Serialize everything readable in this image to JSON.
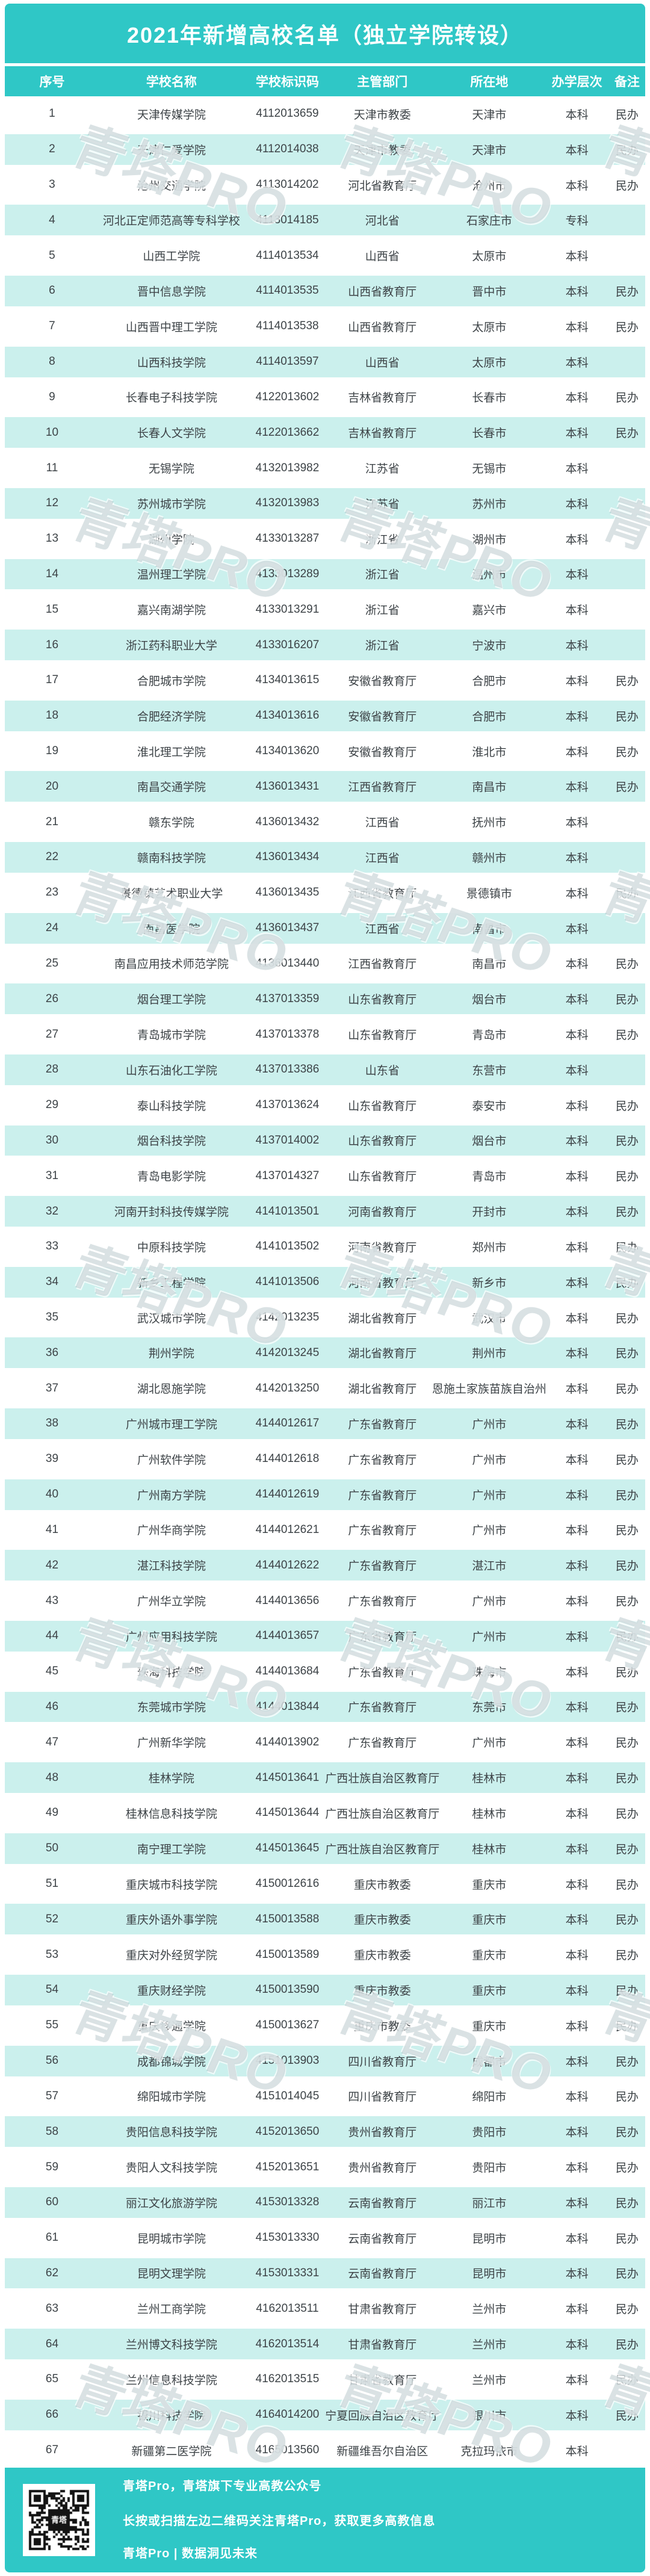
{
  "chart_data": {
    "type": "table",
    "title": "2021年新增高校名单（独立学院转设）",
    "columns": [
      "序号",
      "学校名称",
      "学校标识码",
      "主管部门",
      "所在地",
      "办学层次",
      "备注"
    ],
    "rows": [
      [
        "1",
        "天津传媒学院",
        "4112013659",
        "天津市教委",
        "天津市",
        "本科",
        "民办"
      ],
      [
        "2",
        "天津仁爱学院",
        "4112014038",
        "天津市教委",
        "天津市",
        "本科",
        "民办"
      ],
      [
        "3",
        "沧州交通学院",
        "4113014202",
        "河北省教育厅",
        "沧州市",
        "本科",
        "民办"
      ],
      [
        "4",
        "河北正定师范高等专科学校",
        "4113014185",
        "河北省",
        "石家庄市",
        "专科",
        ""
      ],
      [
        "5",
        "山西工学院",
        "4114013534",
        "山西省",
        "太原市",
        "本科",
        ""
      ],
      [
        "6",
        "晋中信息学院",
        "4114013535",
        "山西省教育厅",
        "晋中市",
        "本科",
        "民办"
      ],
      [
        "7",
        "山西晋中理工学院",
        "4114013538",
        "山西省教育厅",
        "太原市",
        "本科",
        "民办"
      ],
      [
        "8",
        "山西科技学院",
        "4114013597",
        "山西省",
        "太原市",
        "本科",
        ""
      ],
      [
        "9",
        "长春电子科技学院",
        "4122013602",
        "吉林省教育厅",
        "长春市",
        "本科",
        "民办"
      ],
      [
        "10",
        "长春人文学院",
        "4122013662",
        "吉林省教育厅",
        "长春市",
        "本科",
        "民办"
      ],
      [
        "11",
        "无锡学院",
        "4132013982",
        "江苏省",
        "无锡市",
        "本科",
        ""
      ],
      [
        "12",
        "苏州城市学院",
        "4132013983",
        "江苏省",
        "苏州市",
        "本科",
        ""
      ],
      [
        "13",
        "湖州学院",
        "4133013287",
        "浙江省",
        "湖州市",
        "本科",
        ""
      ],
      [
        "14",
        "温州理工学院",
        "4133013289",
        "浙江省",
        "温州市",
        "本科",
        ""
      ],
      [
        "15",
        "嘉兴南湖学院",
        "4133013291",
        "浙江省",
        "嘉兴市",
        "本科",
        ""
      ],
      [
        "16",
        "浙江药科职业大学",
        "4133016207",
        "浙江省",
        "宁波市",
        "本科",
        ""
      ],
      [
        "17",
        "合肥城市学院",
        "4134013615",
        "安徽省教育厅",
        "合肥市",
        "本科",
        "民办"
      ],
      [
        "18",
        "合肥经济学院",
        "4134013616",
        "安徽省教育厅",
        "合肥市",
        "本科",
        "民办"
      ],
      [
        "19",
        "淮北理工学院",
        "4134013620",
        "安徽省教育厅",
        "淮北市",
        "本科",
        "民办"
      ],
      [
        "20",
        "南昌交通学院",
        "4136013431",
        "江西省教育厅",
        "南昌市",
        "本科",
        "民办"
      ],
      [
        "21",
        "赣东学院",
        "4136013432",
        "江西省",
        "抚州市",
        "本科",
        ""
      ],
      [
        "22",
        "赣南科技学院",
        "4136013434",
        "江西省",
        "赣州市",
        "本科",
        ""
      ],
      [
        "23",
        "景德镇艺术职业大学",
        "4136013435",
        "江西省教育厅",
        "景德镇市",
        "本科",
        "民办"
      ],
      [
        "24",
        "南昌医学院",
        "4136013437",
        "江西省",
        "南昌市",
        "本科",
        ""
      ],
      [
        "25",
        "南昌应用技术师范学院",
        "4136013440",
        "江西省教育厅",
        "南昌市",
        "本科",
        "民办"
      ],
      [
        "26",
        "烟台理工学院",
        "4137013359",
        "山东省教育厅",
        "烟台市",
        "本科",
        "民办"
      ],
      [
        "27",
        "青岛城市学院",
        "4137013378",
        "山东省教育厅",
        "青岛市",
        "本科",
        "民办"
      ],
      [
        "28",
        "山东石油化工学院",
        "4137013386",
        "山东省",
        "东营市",
        "本科",
        ""
      ],
      [
        "29",
        "泰山科技学院",
        "4137013624",
        "山东省教育厅",
        "泰安市",
        "本科",
        "民办"
      ],
      [
        "30",
        "烟台科技学院",
        "4137014002",
        "山东省教育厅",
        "烟台市",
        "本科",
        "民办"
      ],
      [
        "31",
        "青岛电影学院",
        "4137014327",
        "山东省教育厅",
        "青岛市",
        "本科",
        "民办"
      ],
      [
        "32",
        "河南开封科技传媒学院",
        "4141013501",
        "河南省教育厅",
        "开封市",
        "本科",
        "民办"
      ],
      [
        "33",
        "中原科技学院",
        "4141013502",
        "河南省教育厅",
        "郑州市",
        "本科",
        "民办"
      ],
      [
        "34",
        "新乡工程学院",
        "4141013506",
        "河南省教育厅",
        "新乡市",
        "本科",
        "民办"
      ],
      [
        "35",
        "武汉城市学院",
        "4142013235",
        "湖北省教育厅",
        "武汉市",
        "本科",
        "民办"
      ],
      [
        "36",
        "荆州学院",
        "4142013245",
        "湖北省教育厅",
        "荆州市",
        "本科",
        "民办"
      ],
      [
        "37",
        "湖北恩施学院",
        "4142013250",
        "湖北省教育厅",
        "恩施土家族苗族自治州",
        "本科",
        "民办"
      ],
      [
        "38",
        "广州城市理工学院",
        "4144012617",
        "广东省教育厅",
        "广州市",
        "本科",
        "民办"
      ],
      [
        "39",
        "广州软件学院",
        "4144012618",
        "广东省教育厅",
        "广州市",
        "本科",
        "民办"
      ],
      [
        "40",
        "广州南方学院",
        "4144012619",
        "广东省教育厅",
        "广州市",
        "本科",
        "民办"
      ],
      [
        "41",
        "广州华商学院",
        "4144012621",
        "广东省教育厅",
        "广州市",
        "本科",
        "民办"
      ],
      [
        "42",
        "湛江科技学院",
        "4144012622",
        "广东省教育厅",
        "湛江市",
        "本科",
        "民办"
      ],
      [
        "43",
        "广州华立学院",
        "4144013656",
        "广东省教育厅",
        "广州市",
        "本科",
        "民办"
      ],
      [
        "44",
        "广州应用科技学院",
        "4144013657",
        "广东省教育厅",
        "广州市",
        "本科",
        "民办"
      ],
      [
        "45",
        "珠海科技学院",
        "4144013684",
        "广东省教育厅",
        "珠海市",
        "本科",
        "民办"
      ],
      [
        "46",
        "东莞城市学院",
        "4144013844",
        "广东省教育厅",
        "东莞市",
        "本科",
        "民办"
      ],
      [
        "47",
        "广州新华学院",
        "4144013902",
        "广东省教育厅",
        "广州市",
        "本科",
        "民办"
      ],
      [
        "48",
        "桂林学院",
        "4145013641",
        "广西壮族自治区教育厅",
        "桂林市",
        "本科",
        "民办"
      ],
      [
        "49",
        "桂林信息科技学院",
        "4145013644",
        "广西壮族自治区教育厅",
        "桂林市",
        "本科",
        "民办"
      ],
      [
        "50",
        "南宁理工学院",
        "4145013645",
        "广西壮族自治区教育厅",
        "桂林市",
        "本科",
        "民办"
      ],
      [
        "51",
        "重庆城市科技学院",
        "4150012616",
        "重庆市教委",
        "重庆市",
        "本科",
        "民办"
      ],
      [
        "52",
        "重庆外语外事学院",
        "4150013588",
        "重庆市教委",
        "重庆市",
        "本科",
        "民办"
      ],
      [
        "53",
        "重庆对外经贸学院",
        "4150013589",
        "重庆市教委",
        "重庆市",
        "本科",
        "民办"
      ],
      [
        "54",
        "重庆财经学院",
        "4150013590",
        "重庆市教委",
        "重庆市",
        "本科",
        "民办"
      ],
      [
        "55",
        "重庆移通学院",
        "4150013627",
        "重庆市教委",
        "重庆市",
        "本科",
        "民办"
      ],
      [
        "56",
        "成都锦城学院",
        "4151013903",
        "四川省教育厅",
        "成都市",
        "本科",
        "民办"
      ],
      [
        "57",
        "绵阳城市学院",
        "4151014045",
        "四川省教育厅",
        "绵阳市",
        "本科",
        "民办"
      ],
      [
        "58",
        "贵阳信息科技学院",
        "4152013650",
        "贵州省教育厅",
        "贵阳市",
        "本科",
        "民办"
      ],
      [
        "59",
        "贵阳人文科技学院",
        "4152013651",
        "贵州省教育厅",
        "贵阳市",
        "本科",
        "民办"
      ],
      [
        "60",
        "丽江文化旅游学院",
        "4153013328",
        "云南省教育厅",
        "丽江市",
        "本科",
        "民办"
      ],
      [
        "61",
        "昆明城市学院",
        "4153013330",
        "云南省教育厅",
        "昆明市",
        "本科",
        "民办"
      ],
      [
        "62",
        "昆明文理学院",
        "4153013331",
        "云南省教育厅",
        "昆明市",
        "本科",
        "民办"
      ],
      [
        "63",
        "兰州工商学院",
        "4162013511",
        "甘肃省教育厅",
        "兰州市",
        "本科",
        "民办"
      ],
      [
        "64",
        "兰州博文科技学院",
        "4162013514",
        "甘肃省教育厅",
        "兰州市",
        "本科",
        "民办"
      ],
      [
        "65",
        "兰州信息科技学院",
        "4162013515",
        "甘肃省教育厅",
        "兰州市",
        "本科",
        "民办"
      ],
      [
        "66",
        "银川科技学院",
        "4164014200",
        "宁夏回族自治区教育厅",
        "银川市",
        "本科",
        "民办"
      ],
      [
        "67",
        "新疆第二医学院",
        "4165013560",
        "新疆维吾尔自治区",
        "克拉玛依市",
        "本科",
        ""
      ]
    ],
    "styles": {
      "accent_teal": "#2FC7C6",
      "row_tint": "#CBF0ED",
      "text_color": "#3D4347"
    }
  },
  "branding": {
    "watermark": "青塔PRO",
    "qr_label": "青塔",
    "footer_line1": "青塔Pro，青塔旗下专业高教公众号",
    "footer_line2": "长按或扫描左边二维码关注青塔Pro，获取更多高教信息",
    "footer_line3": "青塔Pro | 数据洞见未来"
  }
}
